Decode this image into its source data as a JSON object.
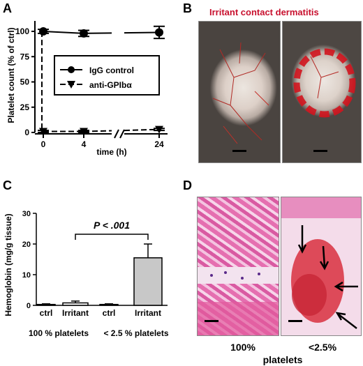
{
  "panels": {
    "a": {
      "letter": "A",
      "ylabel": "Platelet count (% of ctrl)",
      "xlabel": "time (h)",
      "yticks": [
        "0",
        "25",
        "50",
        "75",
        "100"
      ],
      "xticks": [
        "0",
        "4",
        "24"
      ],
      "legend": [
        "IgG control",
        "anti-GPIbα"
      ]
    },
    "b": {
      "letter": "B",
      "title": "Irritant contact dermatitis"
    },
    "c": {
      "letter": "C",
      "ylabel": "Hemoglobin (mg/g tissue)",
      "yticks": [
        "0",
        "10",
        "20",
        "30"
      ],
      "bar_labels": [
        "ctrl",
        "Irritant",
        "ctrl",
        "Irritant"
      ],
      "group_labels": [
        "100 % platelets",
        "< 2.5 % platelets"
      ],
      "significance": "P < .001"
    },
    "d": {
      "letter": "D",
      "captions": [
        "100%",
        "<2.5%"
      ],
      "footer": "platelets"
    }
  },
  "chart_data": [
    {
      "type": "line",
      "panel": "A",
      "x": [
        0,
        4,
        24
      ],
      "xlabel": "time (h)",
      "ylabel": "Platelet count (% of ctrl)",
      "ylim": [
        0,
        100
      ],
      "series": [
        {
          "name": "IgG control",
          "values": [
            100,
            98,
            99
          ],
          "errors": [
            2,
            3,
            6
          ],
          "marker": "circle"
        },
        {
          "name": "anti-GPIbα",
          "values": [
            1,
            1,
            3
          ],
          "errors": [
            1,
            1,
            1
          ],
          "marker": "triangle-down"
        }
      ]
    },
    {
      "type": "bar",
      "panel": "C",
      "categories": [
        "ctrl",
        "Irritant",
        "ctrl",
        "Irritant"
      ],
      "groups": [
        "100 % platelets",
        "100 % platelets",
        "< 2.5 % platelets",
        "< 2.5 % platelets"
      ],
      "values": [
        0.3,
        0.8,
        0.3,
        15.5
      ],
      "errors": [
        0.2,
        0.6,
        0.2,
        4.5
      ],
      "ylabel": "Hemoglobin (mg/g tissue)",
      "ylim": [
        0,
        30
      ],
      "annotation": "P < .001"
    }
  ]
}
